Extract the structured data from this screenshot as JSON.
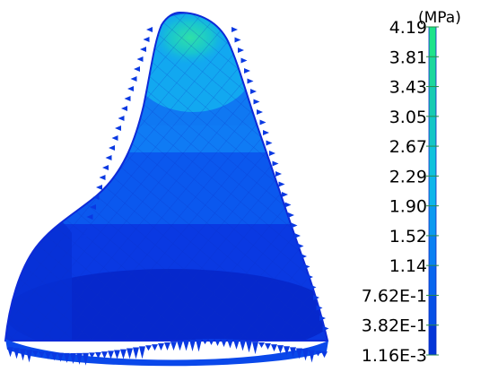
{
  "legend": {
    "unit": "(MPa)",
    "labels": [
      "4.19",
      "3.81",
      "3.43",
      "3.05",
      "2.67",
      "2.29",
      "1.90",
      "1.52",
      "1.14",
      "7.62E-1",
      "3.82E-1",
      "1.16E-3"
    ],
    "colors": [
      "#1ee38a",
      "#1cd79c",
      "#18cbb2",
      "#14c6c6",
      "#10c2dc",
      "#0fb6ea",
      "#0c9af0",
      "#0a80f2",
      "#0866ee",
      "#0650e6",
      "#0436d8",
      "#0220c8"
    ]
  },
  "model": {
    "colors": {
      "outline": "#0d2ad8",
      "base": "#0a39e2",
      "dark": "#0628cc",
      "mid": "#0c5ef0",
      "light": "#0f80f4",
      "cyan": "#12a8f0",
      "top": "#20d6b6"
    }
  }
}
